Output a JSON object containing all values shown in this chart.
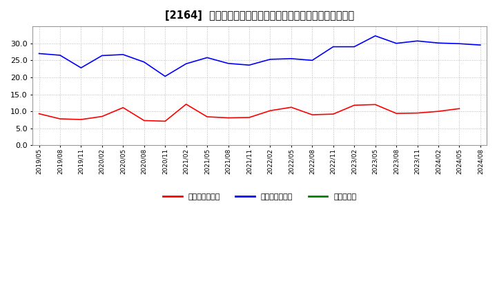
{
  "title": "[2164]  売上債権回転率、買入債務回転率、在庫回転率の推移",
  "x_labels": [
    "2019/05",
    "2019/08",
    "2019/11",
    "2020/02",
    "2020/05",
    "2020/08",
    "2020/11",
    "2021/02",
    "2021/05",
    "2021/08",
    "2021/11",
    "2022/02",
    "2022/05",
    "2022/08",
    "2022/11",
    "2023/02",
    "2023/05",
    "2023/08",
    "2023/11",
    "2024/02",
    "2024/05",
    "2024/08"
  ],
  "receivables_turnover": [
    9.3,
    7.8,
    7.6,
    8.5,
    11.1,
    7.3,
    7.1,
    12.1,
    8.4,
    8.1,
    8.2,
    10.2,
    11.2,
    9.0,
    9.2,
    11.8,
    12.0,
    9.4,
    9.5,
    10.0,
    10.8,
    null
  ],
  "payables_turnover": [
    27.0,
    26.5,
    22.8,
    26.4,
    26.7,
    24.5,
    20.3,
    24.0,
    25.8,
    24.1,
    23.6,
    25.3,
    25.5,
    25.0,
    29.0,
    29.0,
    32.2,
    30.0,
    30.7,
    30.1,
    29.9,
    29.5
  ],
  "inventory_turnover": [
    null,
    null,
    null,
    null,
    null,
    null,
    null,
    null,
    null,
    null,
    null,
    null,
    null,
    null,
    null,
    null,
    null,
    null,
    null,
    null,
    null,
    null
  ],
  "ylim": [
    0.0,
    35.0
  ],
  "yticks": [
    0.0,
    5.0,
    10.0,
    15.0,
    20.0,
    25.0,
    30.0
  ],
  "receivables_color": "#ff0000",
  "payables_color": "#0000ff",
  "inventory_color": "#008000",
  "background_color": "#ffffff",
  "grid_color": "#bbbbbb",
  "title_fontsize": 10.5,
  "legend_labels": [
    "売上債権回転率",
    "買入債務回転率",
    "在庫回転率"
  ]
}
